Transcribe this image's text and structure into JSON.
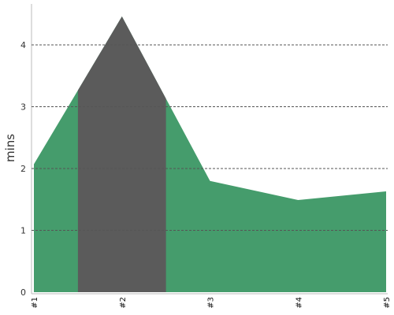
{
  "chart_data": {
    "type": "area",
    "categories": [
      "#1",
      "#2",
      "#3",
      "#4",
      "#5"
    ],
    "values": [
      2.07,
      4.46,
      1.8,
      1.49,
      1.63
    ],
    "ylabel": "mins",
    "xlabel": "",
    "ylim": [
      0,
      4.6
    ],
    "yticks": [
      "0",
      "1",
      "2",
      "3",
      "4"
    ],
    "grid": true,
    "highlight_category": "#2",
    "colors": {
      "area": "#459c6c",
      "highlight": "#5b5b5b",
      "grid": "#555555",
      "axis": "#bbbbbb"
    }
  }
}
